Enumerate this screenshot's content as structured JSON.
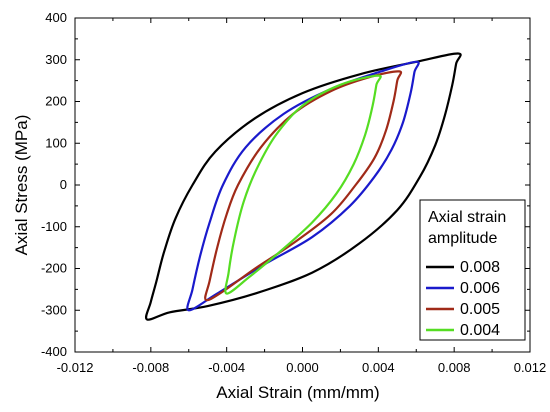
{
  "chart_data": {
    "type": "line",
    "xlabel": "Axial Strain (mm/mm)",
    "ylabel": "Axial Stress (MPa)",
    "xlim": [
      -0.012,
      0.012
    ],
    "ylim": [
      -400,
      400
    ],
    "xticks": [
      -0.012,
      -0.008,
      -0.004,
      0.0,
      0.004,
      0.008,
      0.012
    ],
    "xtick_labels": [
      "-0.012",
      "-0.008",
      "-0.004",
      "0.000",
      "0.004",
      "0.008",
      "0.012"
    ],
    "yticks": [
      -400,
      -300,
      -200,
      -100,
      0,
      100,
      200,
      300,
      400
    ],
    "ytick_labels": [
      "-400",
      "-300",
      "-200",
      "-100",
      "0",
      "100",
      "200",
      "300",
      "400"
    ],
    "grid": false,
    "legend_title": "Axial strain amplitude",
    "legend_title_lines": [
      "Axial strain",
      "amplitude"
    ],
    "legend_position": "bottom-right",
    "series": [
      {
        "name": "0.008",
        "color": "#000000",
        "points": [
          [
            0.0082,
            315
          ],
          [
            0.0081,
            290
          ],
          [
            0.0079,
            240
          ],
          [
            0.0075,
            165
          ],
          [
            0.007,
            95
          ],
          [
            0.0062,
            20
          ],
          [
            0.005,
            -60
          ],
          [
            0.003,
            -140
          ],
          [
            0.0005,
            -210
          ],
          [
            -0.0025,
            -260
          ],
          [
            -0.005,
            -290
          ],
          [
            -0.007,
            -305
          ],
          [
            -0.0082,
            -322
          ],
          [
            -0.008,
            -280
          ],
          [
            -0.0077,
            -230
          ],
          [
            -0.0073,
            -160
          ],
          [
            -0.0067,
            -80
          ],
          [
            -0.0058,
            0
          ],
          [
            -0.0046,
            80
          ],
          [
            -0.0025,
            160
          ],
          [
            0.0,
            220
          ],
          [
            0.003,
            265
          ],
          [
            0.006,
            295
          ],
          [
            0.0082,
            315
          ]
        ]
      },
      {
        "name": "0.006",
        "color": "#1a1acc",
        "points": [
          [
            0.006,
            295
          ],
          [
            0.0059,
            270
          ],
          [
            0.0057,
            220
          ],
          [
            0.0053,
            150
          ],
          [
            0.0047,
            85
          ],
          [
            0.0038,
            20
          ],
          [
            0.0025,
            -50
          ],
          [
            0.0005,
            -125
          ],
          [
            -0.002,
            -190
          ],
          [
            -0.0045,
            -260
          ],
          [
            -0.006,
            -300
          ],
          [
            -0.0058,
            -250
          ],
          [
            -0.0054,
            -170
          ],
          [
            -0.0049,
            -90
          ],
          [
            -0.0042,
            0
          ],
          [
            -0.003,
            90
          ],
          [
            -0.001,
            170
          ],
          [
            0.0015,
            230
          ],
          [
            0.004,
            270
          ],
          [
            0.006,
            295
          ]
        ]
      },
      {
        "name": "0.005",
        "color": "#a02a18",
        "points": [
          [
            0.0051,
            272
          ],
          [
            0.005,
            250
          ],
          [
            0.0048,
            200
          ],
          [
            0.0044,
            130
          ],
          [
            0.0038,
            65
          ],
          [
            0.0028,
            0
          ],
          [
            0.0015,
            -70
          ],
          [
            -0.0005,
            -140
          ],
          [
            -0.0025,
            -200
          ],
          [
            -0.0042,
            -255
          ],
          [
            -0.0051,
            -275
          ],
          [
            -0.0049,
            -230
          ],
          [
            -0.0045,
            -150
          ],
          [
            -0.004,
            -70
          ],
          [
            -0.0034,
            0
          ],
          [
            -0.0022,
            90
          ],
          [
            -0.0005,
            170
          ],
          [
            0.0015,
            225
          ],
          [
            0.0035,
            258
          ],
          [
            0.0051,
            272
          ]
        ]
      },
      {
        "name": "0.004",
        "color": "#55dd22",
        "points": [
          [
            0.004,
            262
          ],
          [
            0.0039,
            240
          ],
          [
            0.0037,
            190
          ],
          [
            0.0033,
            120
          ],
          [
            0.0027,
            50
          ],
          [
            0.0018,
            -20
          ],
          [
            0.0005,
            -90
          ],
          [
            -0.0012,
            -160
          ],
          [
            -0.0028,
            -220
          ],
          [
            -0.004,
            -260
          ],
          [
            -0.0039,
            -210
          ],
          [
            -0.0036,
            -130
          ],
          [
            -0.0031,
            -40
          ],
          [
            -0.0024,
            40
          ],
          [
            -0.0014,
            120
          ],
          [
            0.0,
            190
          ],
          [
            0.002,
            240
          ],
          [
            0.004,
            262
          ]
        ]
      }
    ]
  }
}
